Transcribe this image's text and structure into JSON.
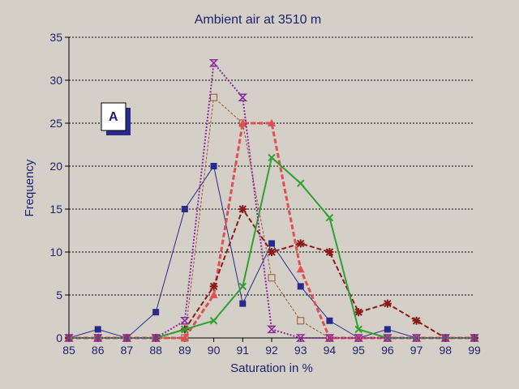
{
  "chart_data": {
    "type": "line",
    "title": "Ambient air  at 3510 m",
    "xlabel": "Saturation in %",
    "ylabel": "Frequency",
    "xlim": [
      85,
      99
    ],
    "ylim": [
      0,
      35
    ],
    "x_ticks": [
      "85",
      "86",
      "87",
      "88",
      "89",
      "90",
      "91",
      "92",
      "93",
      "94",
      "95",
      "96",
      "97",
      "98",
      "99"
    ],
    "y_ticks": [
      "0",
      "5",
      "10",
      "15",
      "20",
      "25",
      "30",
      "35"
    ],
    "grid": "horizontal dotted",
    "panel_label": "A",
    "x": [
      85,
      86,
      87,
      88,
      89,
      90,
      91,
      92,
      93,
      94,
      95,
      96,
      97,
      98,
      99
    ],
    "series": [
      {
        "color": "#2a2a8c",
        "dash": "",
        "width": 1,
        "marker": "square",
        "values": [
          0,
          1,
          0,
          3,
          15,
          20,
          4,
          11,
          6,
          2,
          0,
          1,
          0,
          0,
          0
        ]
      },
      {
        "color": "#a0522d",
        "dash": "3 2",
        "width": 1,
        "marker": "open-square",
        "values": [
          0,
          0,
          0,
          0,
          0,
          28,
          25,
          7,
          2,
          0,
          0,
          0,
          0,
          0,
          0
        ]
      },
      {
        "color": "#e05050",
        "dash": "6 3",
        "width": 3,
        "marker": "triangle",
        "values": [
          0,
          0,
          0,
          0,
          0,
          5,
          25,
          25,
          8,
          0,
          0,
          0,
          0,
          0,
          0
        ]
      },
      {
        "color": "#8b1a1a",
        "dash": "6 3",
        "width": 2,
        "marker": "star",
        "values": [
          0,
          0,
          0,
          0,
          1,
          6,
          15,
          10,
          11,
          10,
          3,
          4,
          2,
          0,
          0
        ]
      },
      {
        "color": "#30a030",
        "dash": "",
        "width": 2,
        "marker": "x",
        "values": [
          0,
          0,
          0,
          0,
          1,
          2,
          6,
          21,
          18,
          14,
          1,
          0,
          0,
          0,
          0
        ]
      },
      {
        "color": "#8b2a9c",
        "dash": "2 2",
        "width": 2,
        "marker": "hourglass",
        "values": [
          0,
          0,
          0,
          0,
          2,
          32,
          28,
          1,
          0,
          0,
          0,
          0,
          0,
          0,
          0
        ]
      }
    ]
  }
}
